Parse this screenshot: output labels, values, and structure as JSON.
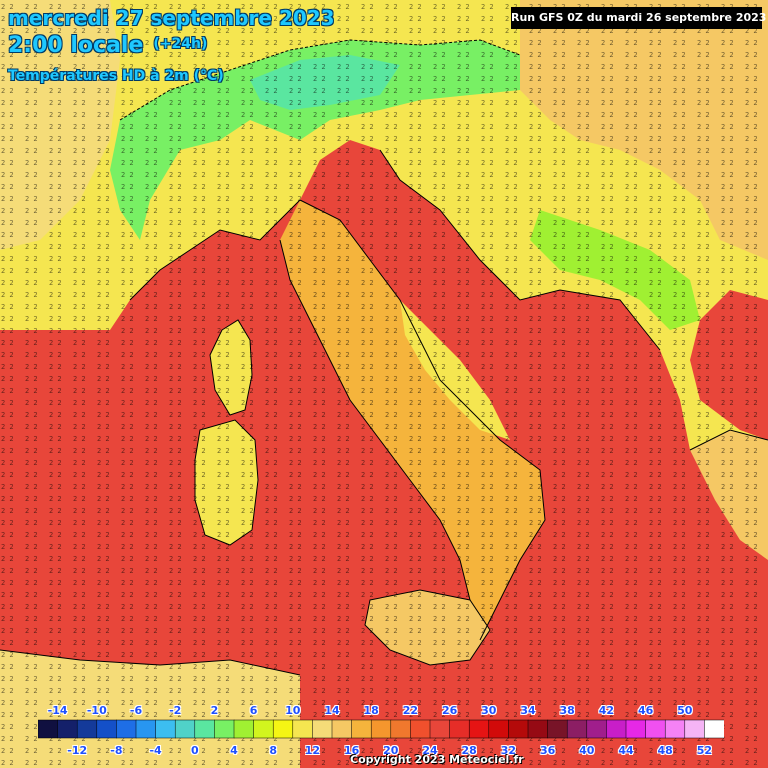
{
  "header": {
    "date": "mercredi 27 septembre 2023",
    "time": "2:00 locale",
    "offset": "(+24h)",
    "parameter": "Températures HD à 2m (°C)"
  },
  "run_info": "Run GFS 0Z du mardi 26 septembre 2023",
  "copyright": "Copyright 2023 Meteociel.fr",
  "legend": {
    "top_labels": [
      "-14",
      "-10",
      "-6",
      "-2",
      "2",
      "6",
      "10",
      "14",
      "18",
      "22",
      "26",
      "30",
      "34",
      "38",
      "42",
      "46",
      "50"
    ],
    "bottom_labels": [
      "-12",
      "-8",
      "-4",
      "0",
      "4",
      "8",
      "12",
      "16",
      "20",
      "24",
      "28",
      "32",
      "36",
      "40",
      "44",
      "48",
      "52"
    ],
    "colors": [
      "#101040",
      "#14206a",
      "#143a9a",
      "#1450c8",
      "#1e6ee6",
      "#2896f0",
      "#3cbef0",
      "#50d2c8",
      "#5ae6a0",
      "#78f064",
      "#a0f032",
      "#d2f51e",
      "#f5f514",
      "#f5e650",
      "#f5dc78",
      "#f5c864",
      "#f5b43c",
      "#f5962d",
      "#f0782d",
      "#f0502d",
      "#e8463a",
      "#e62d28",
      "#e61414",
      "#d20a0a",
      "#b40a0a",
      "#960a14",
      "#781428",
      "#8c1e64",
      "#a01e8c",
      "#c81ec8",
      "#e628e6",
      "#f050f0",
      "#f582f5",
      "#f5b4f5",
      "#ffffff"
    ]
  },
  "map": {
    "regions": [
      "mer-mediterranee",
      "alpes",
      "corse",
      "sardaigne",
      "italie",
      "balkans"
    ],
    "colors": {
      "sea": "#e8463a",
      "warm_sea": "#f0502d",
      "land_yellow": "#f5e650",
      "land_orange": "#f5b43c",
      "land_light_orange": "#f5c864",
      "alps_green": "#78f064",
      "alps_green_dark": "#5ae6a0",
      "border": "#000000"
    }
  }
}
